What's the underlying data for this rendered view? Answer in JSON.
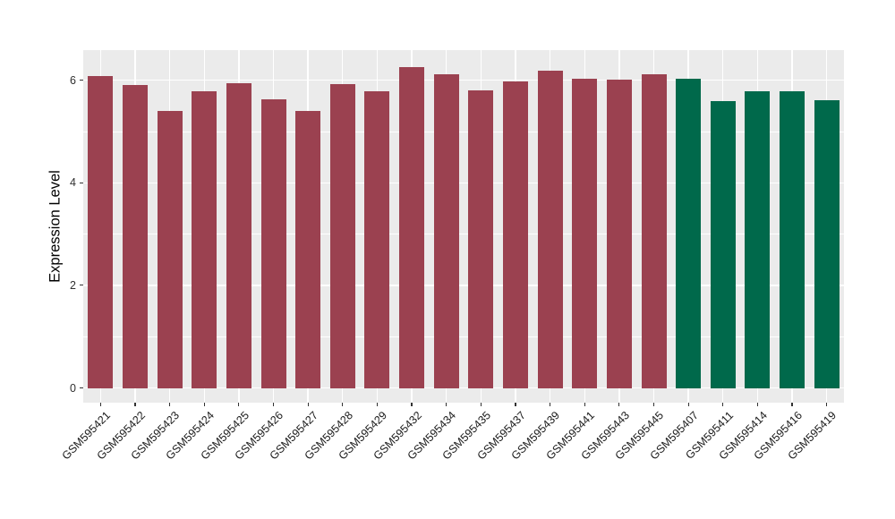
{
  "figure": {
    "background": "#FFFFFF",
    "panel_background": "#EBEBEB",
    "gridline_color": "#FFFFFF",
    "tick_mark_color": "#333333",
    "axis_text_color": "#303030",
    "axis_title_color": "#000000"
  },
  "chart_data": {
    "type": "bar",
    "title": "",
    "xlabel": "",
    "ylabel": "Expression Level",
    "ylim": [
      0,
      6.6
    ],
    "y_major_ticks": [
      0,
      2,
      4,
      6
    ],
    "y_minor_ticks": [
      1,
      3,
      5
    ],
    "grid": "on",
    "legend_position": "none",
    "x_label_rotation_deg": 45,
    "categories": [
      "GSM595421",
      "GSM595422",
      "GSM595423",
      "GSM595424",
      "GSM595425",
      "GSM595426",
      "GSM595427",
      "GSM595428",
      "GSM595429",
      "GSM595432",
      "GSM595434",
      "GSM595435",
      "GSM595437",
      "GSM595439",
      "GSM595441",
      "GSM595443",
      "GSM595445",
      "GSM595407",
      "GSM595411",
      "GSM595414",
      "GSM595416",
      "GSM595419"
    ],
    "values": [
      6.09,
      5.91,
      5.4,
      5.79,
      5.95,
      5.62,
      5.4,
      5.92,
      5.78,
      6.26,
      6.11,
      5.8,
      5.97,
      6.18,
      6.03,
      6.01,
      6.11,
      6.03,
      5.6,
      5.79,
      5.78,
      5.61
    ],
    "bar_group_index": [
      0,
      0,
      0,
      0,
      0,
      0,
      0,
      0,
      0,
      0,
      0,
      0,
      0,
      0,
      0,
      0,
      0,
      1,
      1,
      1,
      1,
      1
    ],
    "group_palette": [
      "#9B4150",
      "#00694B"
    ]
  }
}
